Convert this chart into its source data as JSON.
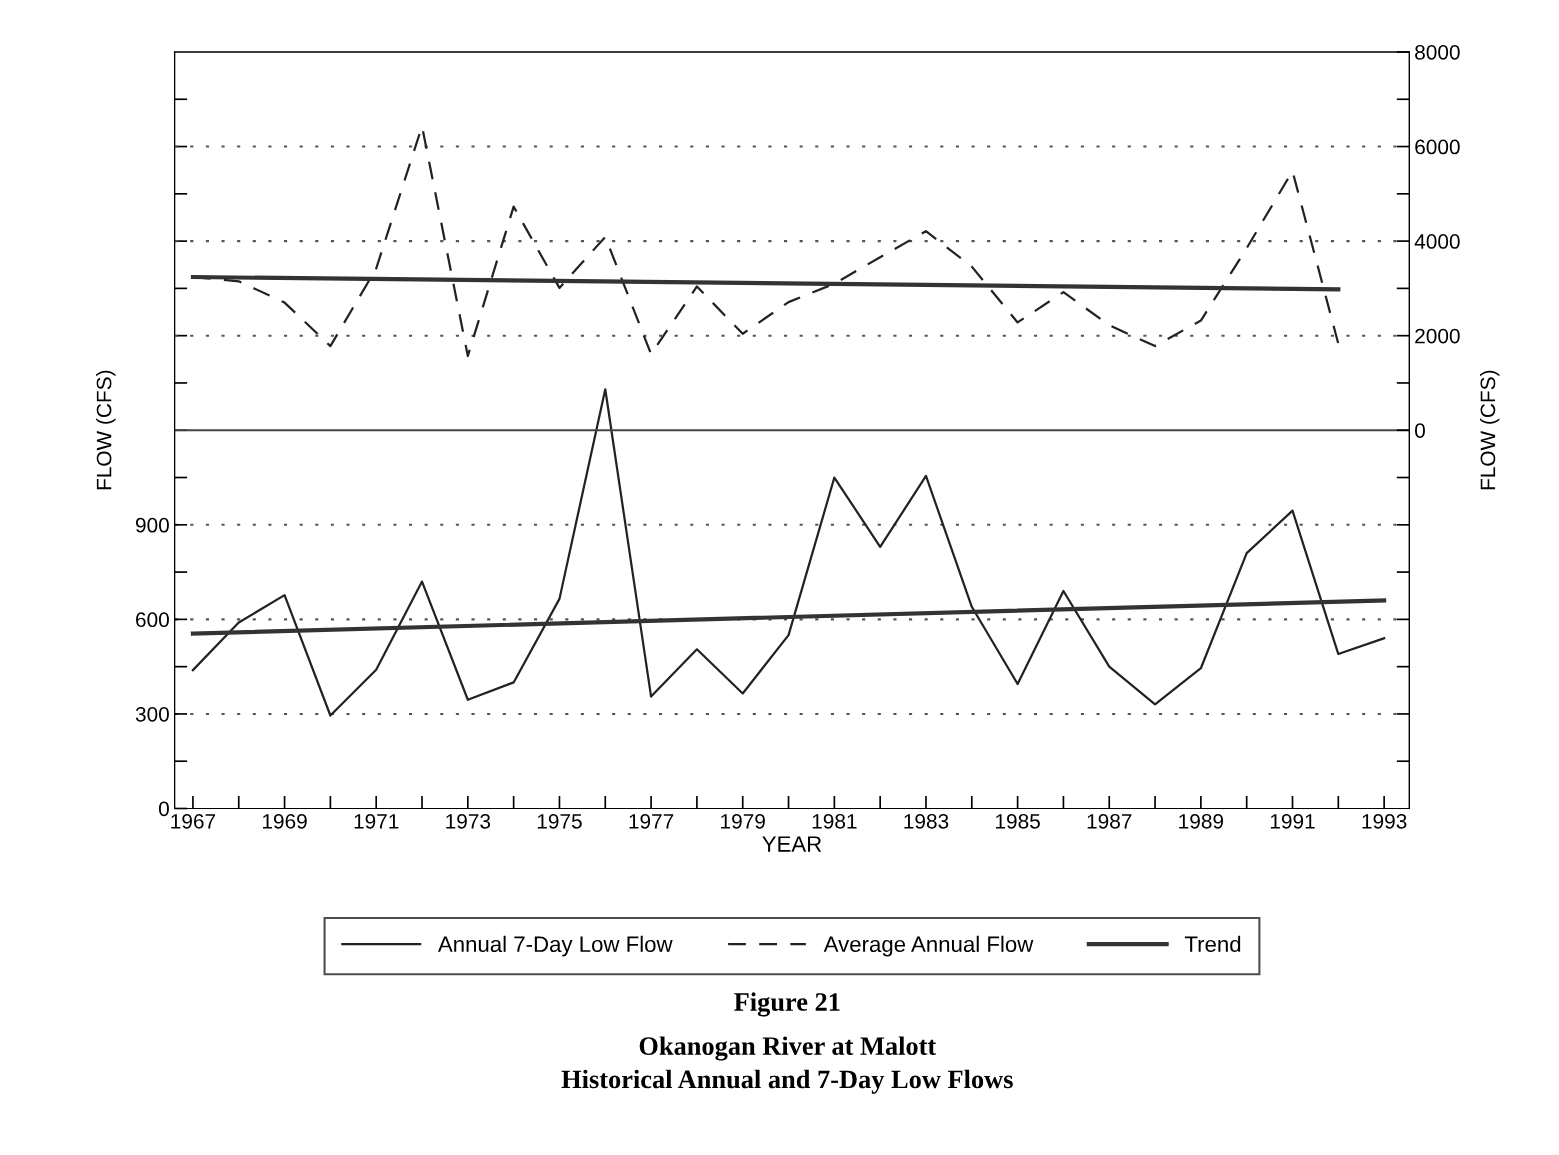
{
  "chart_data": {
    "type": "line",
    "xlabel": "YEAR",
    "ylabel": "FLOW (CFS)",
    "y2label": "FLOW (CFS)",
    "title": "Figure 21",
    "subtitle": "Okanogan River at Malott\nHistorical Annual and 7-Day Low Flows",
    "x": [
      1967,
      1968,
      1969,
      1970,
      1971,
      1972,
      1973,
      1974,
      1975,
      1976,
      1977,
      1978,
      1979,
      1980,
      1981,
      1982,
      1983,
      1984,
      1985,
      1986,
      1987,
      1988,
      1989,
      1990,
      1991,
      1992,
      1993
    ],
    "xlim": [
      1966.6,
      1993.55
    ],
    "xticks": [
      1967,
      {
        "value": 1968,
        "label": null
      },
      1969,
      {
        "value": 1970,
        "label": null
      },
      1971,
      {
        "value": 1972,
        "label": null
      },
      1973,
      {
        "value": 1974,
        "label": null
      },
      1975,
      {
        "value": 1976,
        "label": null
      },
      1977,
      {
        "value": 1978,
        "label": null
      },
      1979,
      {
        "value": 1980,
        "label": null
      },
      1981,
      {
        "value": 1982,
        "label": null
      },
      1983,
      {
        "value": 1984,
        "label": null
      },
      1985,
      {
        "value": 1986,
        "label": null
      },
      1987,
      {
        "value": 1988,
        "label": null
      },
      1989,
      {
        "value": 1990,
        "label": null
      },
      1991,
      {
        "value": 1992,
        "label": null
      },
      1993
    ],
    "ylim": [
      0,
      2400
    ],
    "yticks": [
      0,
      {
        "value": 150,
        "label": null
      },
      300,
      {
        "value": 450,
        "label": null
      },
      600,
      {
        "value": 750,
        "label": null
      },
      900,
      {
        "value": 1050,
        "label": null
      },
      {
        "value": 1200,
        "label": null
      },
      {
        "value": 1350,
        "label": null
      },
      {
        "value": 1500,
        "label": null
      },
      {
        "value": 1650,
        "label": null
      },
      {
        "value": 1800,
        "label": null
      },
      {
        "value": 1950,
        "label": null
      },
      {
        "value": 2100,
        "label": null
      },
      {
        "value": 2250,
        "label": null
      }
    ],
    "y2lim": [
      -8000,
      8000
    ],
    "y2ticks": [
      {
        "value": -7000,
        "label": null
      },
      {
        "value": -6000,
        "label": null
      },
      {
        "value": -5000,
        "label": null
      },
      {
        "value": -4000,
        "label": null
      },
      {
        "value": -3000,
        "label": null
      },
      {
        "value": -2000,
        "label": null
      },
      {
        "value": -1000,
        "label": null
      },
      0,
      {
        "value": 1000,
        "label": null
      },
      2000,
      {
        "value": 3000,
        "label": null
      },
      4000,
      {
        "value": 5000,
        "label": null
      },
      6000,
      {
        "value": 7000,
        "label": null
      },
      8000
    ],
    "series": [
      {
        "name": "Annual 7-Day Low Flow",
        "color": "#222222",
        "line_style": "solid",
        "values": [
          439,
          590,
          677,
          295,
          440,
          720,
          345,
          400,
          665,
          1330,
          355,
          505,
          365,
          550,
          1050,
          830,
          1055,
          640,
          395,
          690,
          450,
          330,
          445,
          810,
          945,
          490,
          540
        ]
      },
      {
        "name": "Average Annual Flow",
        "color": "#222222",
        "line_style": "dashed",
        "axis": "y2",
        "values": [
          3240,
          3150,
          2700,
          1780,
          3420,
          6430,
          1570,
          4730,
          3010,
          4090,
          1610,
          3040,
          2040,
          2710,
          3100,
          3660,
          4210,
          3460,
          2280,
          2920,
          2220,
          1780,
          2320,
          3850,
          5480,
          1830,
          null
        ]
      },
      {
        "name": "Trend",
        "color": "#333333",
        "line_style": "solid",
        "x": [
          1967,
          1993
        ],
        "values": [
          555,
          660
        ]
      },
      {
        "color": "#333333",
        "line_style": "solid",
        "axis": "y2",
        "x": [
          1967,
          1992
        ],
        "values": [
          3240,
          2980
        ]
      }
    ],
    "grid": "y",
    "ref_lines": [
      {
        "axis": "y2",
        "value": 0,
        "line_style": "solid",
        "color": "#444444"
      }
    ],
    "legend": "bottom"
  }
}
